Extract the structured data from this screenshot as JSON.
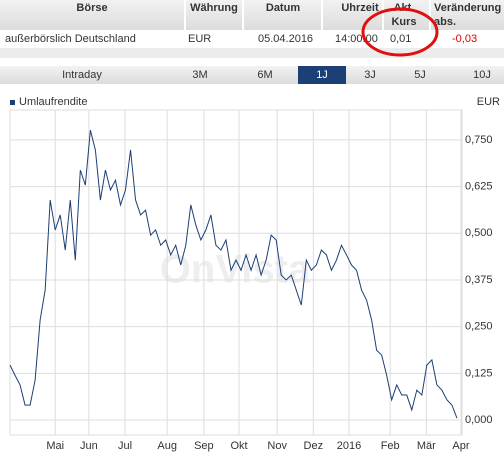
{
  "table": {
    "headers": [
      "Börse",
      "Währung",
      "Datum",
      "Uhrzeit",
      "Akt.",
      "Kurs",
      "Veränderung"
    ],
    "sub_header": "abs.",
    "rows": [
      [
        "außerbörslich Deutschland",
        "EUR",
        "05.04.2016",
        "14:00:00",
        "0,01",
        "-0,03"
      ]
    ]
  },
  "tabs": [
    "Intraday",
    "3M",
    "6M",
    "1J",
    "3J",
    "5J",
    "10J"
  ],
  "selected_tab": 3,
  "chart_data": {
    "type": "line",
    "unit": "EUR",
    "watermark": "OnVista",
    "series": [
      {
        "name": "Umlaufrendite",
        "color": "#1c3f75",
        "values": [
          0.147,
          0.12,
          0.094,
          0.04,
          0.04,
          0.107,
          0.268,
          0.348,
          0.589,
          0.509,
          0.549,
          0.455,
          0.589,
          0.428,
          0.669,
          0.629,
          0.776,
          0.723,
          0.589,
          0.669,
          0.616,
          0.642,
          0.576,
          0.616,
          0.723,
          0.589,
          0.549,
          0.562,
          0.495,
          0.509,
          0.468,
          0.482,
          0.442,
          0.468,
          0.415,
          0.468,
          0.576,
          0.522,
          0.482,
          0.509,
          0.549,
          0.468,
          0.455,
          0.482,
          0.401,
          0.428,
          0.401,
          0.442,
          0.401,
          0.442,
          0.388,
          0.428,
          0.495,
          0.482,
          0.388,
          0.375,
          0.388,
          0.348,
          0.308,
          0.428,
          0.401,
          0.415,
          0.455,
          0.442,
          0.401,
          0.428,
          0.468,
          0.442,
          0.415,
          0.401,
          0.348,
          0.321,
          0.268,
          0.187,
          0.174,
          0.12,
          0.054,
          0.094,
          0.067,
          0.067,
          0.027,
          0.08,
          0.067,
          0.147,
          0.161,
          0.094,
          0.08,
          0.054,
          0.04,
          0.005
        ]
      }
    ],
    "xlim": [
      0,
      90
    ],
    "xticks": [
      {
        "value": 9.0,
        "label": "Mai"
      },
      {
        "value": 15.7,
        "label": "Jun"
      },
      {
        "value": 22.9,
        "label": "Jul"
      },
      {
        "value": 31.3,
        "label": "Aug"
      },
      {
        "value": 38.6,
        "label": "Sep"
      },
      {
        "value": 45.6,
        "label": "Okt"
      },
      {
        "value": 53.2,
        "label": "Nov"
      },
      {
        "value": 60.4,
        "label": "Dez"
      },
      {
        "value": 67.5,
        "label": "2016"
      },
      {
        "value": 75.7,
        "label": "Feb"
      },
      {
        "value": 82.9,
        "label": "Mär"
      },
      {
        "value": 89.8,
        "label": "Apr"
      }
    ],
    "ylim": [
      -0.04,
      0.83
    ],
    "yticks": [
      {
        "value": 0,
        "label": "0,000"
      },
      {
        "value": 0.125,
        "label": "0,125"
      },
      {
        "value": 0.25,
        "label": "0,250"
      },
      {
        "value": 0.375,
        "label": "0,375"
      },
      {
        "value": 0.5,
        "label": "0,500"
      },
      {
        "value": 0.625,
        "label": "0,625"
      },
      {
        "value": 0.75,
        "label": "0,750"
      }
    ],
    "grid": true
  }
}
